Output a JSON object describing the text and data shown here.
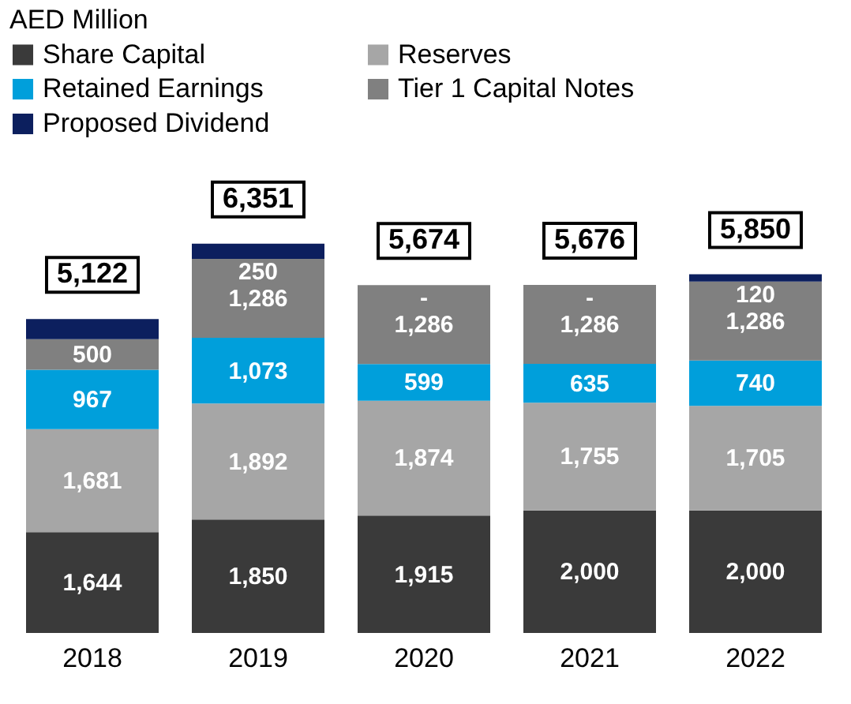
{
  "chart_data": {
    "type": "bar",
    "stacked": true,
    "title": "AED Million",
    "legend": "top",
    "categories": [
      "2018",
      "2019",
      "2020",
      "2021",
      "2022"
    ],
    "series": [
      {
        "name": "Share Capital",
        "color": "#3a3a3a",
        "values": [
          1644,
          1850,
          1915,
          2000,
          2000
        ],
        "value_labels": [
          "1,644",
          "1,850",
          "1,915",
          "2,000",
          "2,000"
        ]
      },
      {
        "name": "Reserves",
        "color": "#a6a6a6",
        "values": [
          1681,
          1892,
          1874,
          1755,
          1705
        ],
        "value_labels": [
          "1,681",
          "1,892",
          "1,874",
          "1,755",
          "1,705"
        ]
      },
      {
        "name": "Retained Earnings",
        "color": "#009fdb",
        "values": [
          967,
          1073,
          599,
          635,
          740
        ],
        "value_labels": [
          "967",
          "1,073",
          "599",
          "635",
          "740"
        ]
      },
      {
        "name": "Tier 1 Capital Notes",
        "color": "#808080",
        "values": [
          500,
          1286,
          1286,
          1286,
          1286
        ],
        "value_labels": [
          "500",
          "1,286",
          "1,286",
          "1,286",
          "1,286"
        ]
      },
      {
        "name": "Proposed Dividend",
        "color": "#0c1f5e",
        "values": [
          330,
          250,
          0,
          0,
          120
        ],
        "value_labels": [
          null,
          "250",
          "-",
          "-",
          "120"
        ]
      }
    ],
    "totals": [
      "5,122",
      "6,351",
      "5,674",
      "5,676",
      "5,850"
    ]
  }
}
